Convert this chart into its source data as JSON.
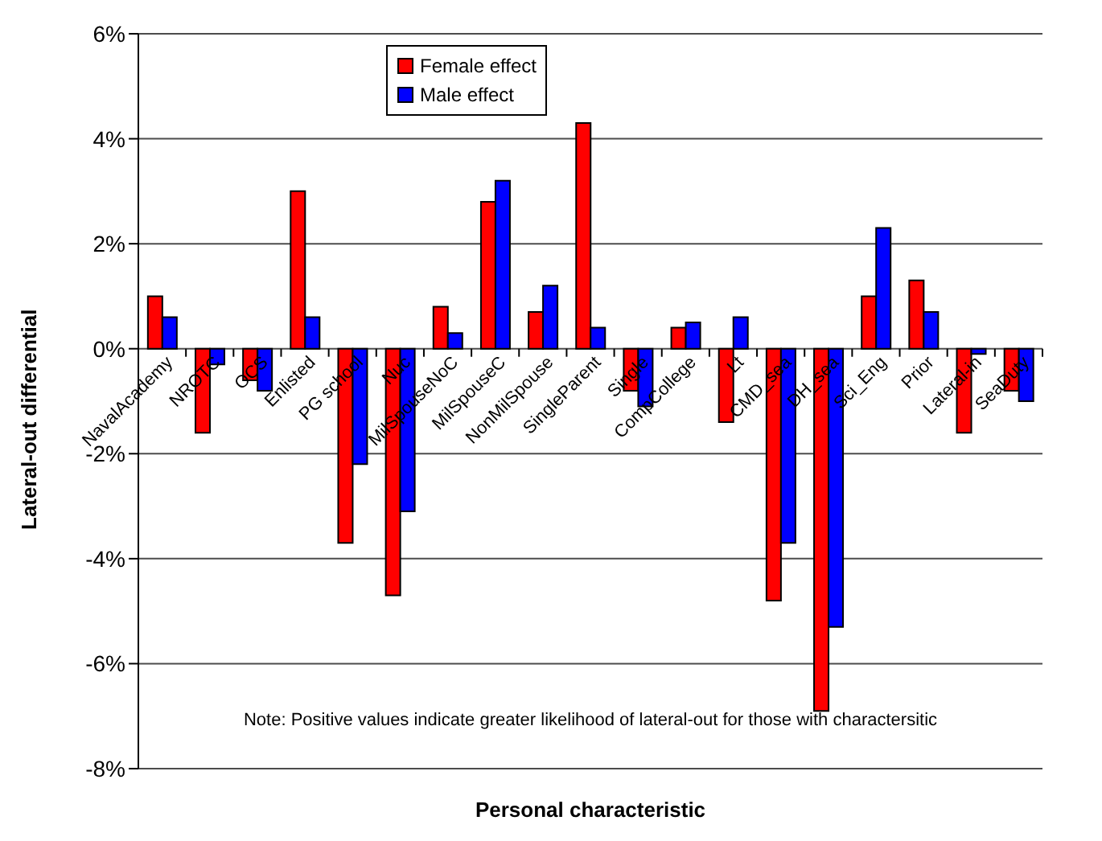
{
  "chart_data": {
    "type": "bar",
    "xlabel": "Personal characteristic",
    "ylabel": "Lateral-out differential",
    "categories": [
      "NavalAcademy",
      "NROTC",
      "OCS",
      "Enlisted",
      "PG school",
      "Nuc",
      "MilSpouseNoC",
      "MilSpouseC",
      "NonMilSpouse",
      "SingleParent",
      "Single",
      "CompCollege",
      "Lt",
      "CMD_sea",
      "DH_sea",
      "Sci_Eng",
      "Prior",
      "Lateral-in",
      "SeaDuty"
    ],
    "series": [
      {
        "name": "Female effect",
        "color": "#ff0000",
        "values": [
          1.0,
          -1.6,
          -0.6,
          3.0,
          -3.7,
          -4.7,
          0.8,
          2.8,
          0.7,
          4.3,
          -0.8,
          0.4,
          -1.4,
          -4.8,
          -6.9,
          1.0,
          1.3,
          -1.6,
          -0.8
        ]
      },
      {
        "name": "Male effect",
        "color": "#0000ff",
        "values": [
          0.6,
          -0.3,
          -0.8,
          0.6,
          -2.2,
          -3.1,
          0.3,
          3.2,
          1.2,
          0.4,
          -1.1,
          0.5,
          0.6,
          -3.7,
          -5.3,
          2.3,
          0.7,
          -0.1,
          -1.0
        ]
      }
    ],
    "ylim": [
      -8,
      6
    ],
    "yticks": [
      {
        "value": -8,
        "label": "-8%"
      },
      {
        "value": -6,
        "label": "-6%"
      },
      {
        "value": -4,
        "label": "-4%"
      },
      {
        "value": -2,
        "label": "-2%"
      },
      {
        "value": 0,
        "label": "0%"
      },
      {
        "value": 2,
        "label": "2%"
      },
      {
        "value": 4,
        "label": "4%"
      },
      {
        "value": 6,
        "label": "6%"
      }
    ],
    "grid": "y",
    "legend": "top",
    "annotations": [
      "Note: Positive values indicate greater likelihood of lateral-out for those with charactersitic"
    ]
  }
}
